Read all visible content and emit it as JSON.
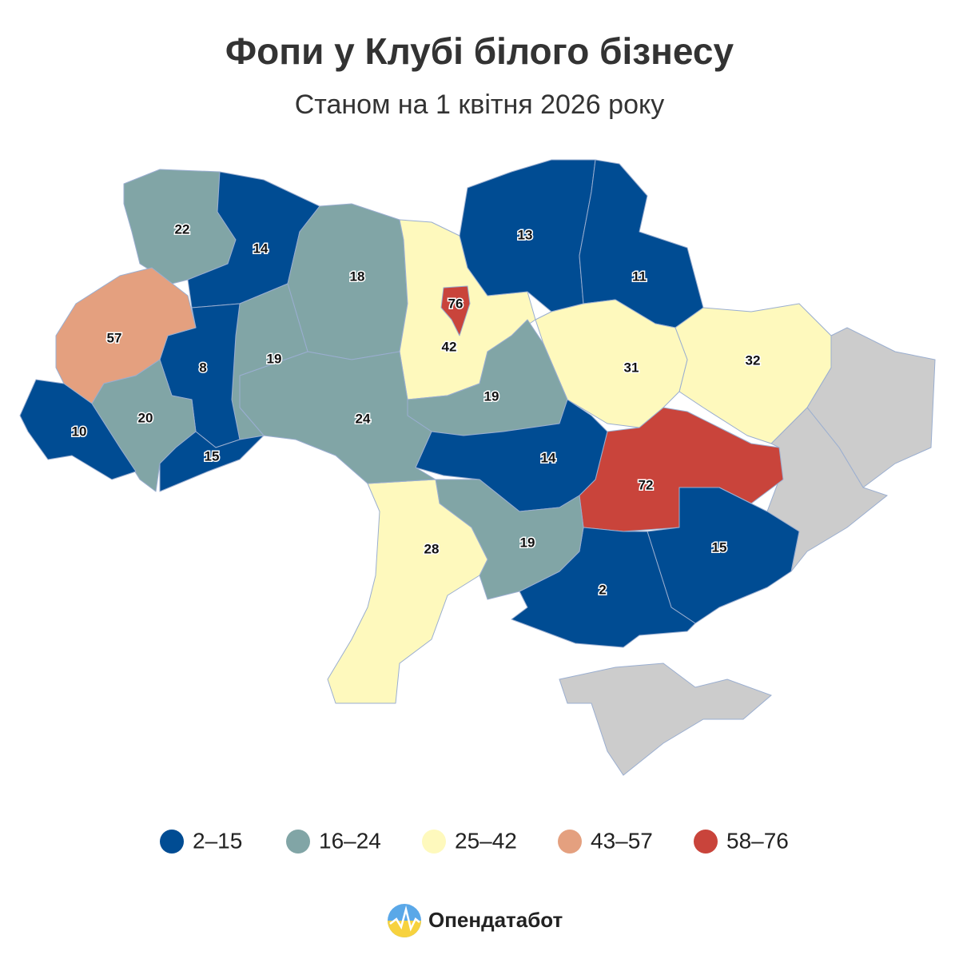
{
  "title": "Фопи у Клубі білого бізнесу",
  "subtitle": "Станом на 1 квітня 2026 року",
  "regions": [
    {
      "value": 22,
      "color": "#81a5a6"
    },
    {
      "value": 14,
      "color": "#004c93"
    },
    {
      "value": 18,
      "color": "#81a5a6"
    },
    {
      "value": 42,
      "color": "#fef9bd"
    },
    {
      "value": 76,
      "color": "#c9443b"
    },
    {
      "value": 13,
      "color": "#004c93"
    },
    {
      "value": 11,
      "color": "#004c93"
    },
    {
      "value": 32,
      "color": "#fef9bd"
    },
    {
      "value": 31,
      "color": "#fef9bd"
    },
    {
      "value": 19,
      "color": "#81a5a6"
    },
    {
      "value": 72,
      "color": "#c9443b"
    },
    {
      "value": 14,
      "color": "#004c93"
    },
    {
      "value": 15,
      "color": "#004c93"
    },
    {
      "value": 2,
      "color": "#004c93"
    },
    {
      "value": 19,
      "color": "#81a5a6"
    },
    {
      "value": 28,
      "color": "#fef9bd"
    },
    {
      "value": 24,
      "color": "#81a5a6"
    },
    {
      "value": 19,
      "color": "#81a5a6"
    },
    {
      "value": 8,
      "color": "#004c93"
    },
    {
      "value": 57,
      "color": "#e4a07f"
    },
    {
      "value": 20,
      "color": "#81a5a6"
    },
    {
      "value": 15,
      "color": "#004c93"
    },
    {
      "value": 10,
      "color": "#004c93"
    }
  ],
  "legend": [
    {
      "label": "2–15",
      "color": "#004c93"
    },
    {
      "label": "16–24",
      "color": "#81a5a6"
    },
    {
      "label": "25–42",
      "color": "#fef9bd"
    },
    {
      "label": "43–57",
      "color": "#e4a07f"
    },
    {
      "label": "58–76",
      "color": "#c9443b"
    }
  ],
  "brand": "Опендатабот"
}
